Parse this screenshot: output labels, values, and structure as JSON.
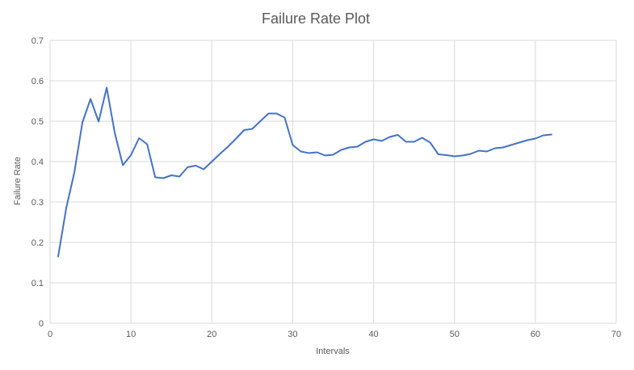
{
  "chart_data": {
    "type": "line",
    "title": "Failure Rate Plot",
    "xlabel": "Intervals",
    "ylabel": "Failure Rate",
    "xlim": [
      0,
      70
    ],
    "ylim": [
      0,
      0.7
    ],
    "x_ticks": [
      "0",
      "10",
      "20",
      "30",
      "40",
      "50",
      "60",
      "70"
    ],
    "y_ticks": [
      "0",
      "0.1",
      "0.2",
      "0.3",
      "0.4",
      "0.5",
      "0.6",
      "0.7"
    ],
    "grid": true,
    "legend": "none",
    "series": [
      {
        "color": "#4472c4",
        "x": [
          1,
          2,
          3,
          4,
          5,
          6,
          7,
          8,
          9,
          10,
          11,
          12,
          13,
          14,
          15,
          16,
          17,
          18,
          19,
          20,
          21,
          22,
          23,
          24,
          25,
          26,
          27,
          28,
          29,
          30,
          31,
          32,
          33,
          34,
          35,
          36,
          37,
          38,
          39,
          40,
          41,
          42,
          43,
          44,
          45,
          46,
          47,
          48,
          49,
          50,
          51,
          52,
          53,
          54,
          55,
          56,
          57,
          58,
          59,
          60,
          61,
          62
        ],
        "y": [
          0.165,
          0.285,
          0.373,
          0.497,
          0.555,
          0.499,
          0.583,
          0.471,
          0.391,
          0.416,
          0.458,
          0.443,
          0.361,
          0.359,
          0.366,
          0.363,
          0.386,
          0.39,
          0.381,
          0.4,
          0.419,
          0.437,
          0.457,
          0.478,
          0.481,
          0.5,
          0.519,
          0.519,
          0.509,
          0.441,
          0.425,
          0.421,
          0.423,
          0.415,
          0.417,
          0.429,
          0.435,
          0.437,
          0.449,
          0.455,
          0.451,
          0.461,
          0.466,
          0.449,
          0.449,
          0.459,
          0.447,
          0.418,
          0.416,
          0.413,
          0.415,
          0.419,
          0.427,
          0.425,
          0.433,
          0.435,
          0.441,
          0.447,
          0.453,
          0.457,
          0.465,
          0.467
        ]
      }
    ]
  }
}
